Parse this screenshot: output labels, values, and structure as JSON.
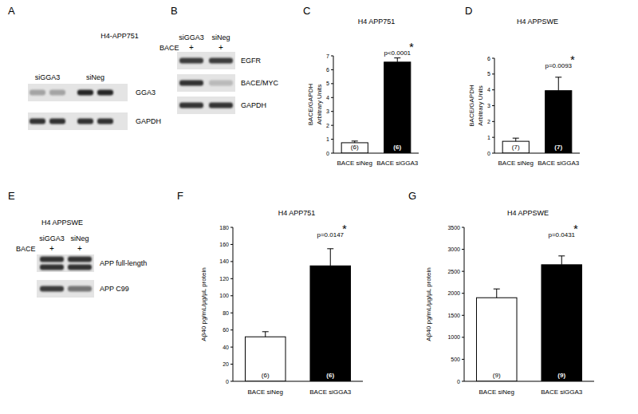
{
  "chart_data": [
    {
      "type": "bar",
      "panel": "C",
      "title": "H4 APP751",
      "y_label": [
        "BACE/GAPDH",
        "Arbitrary Units"
      ],
      "categories": [
        "BACE siNeg",
        "BACE siGGA3"
      ],
      "values": [
        0.75,
        6.55
      ],
      "errors": [
        0.12,
        0.3
      ],
      "n_labels": [
        "(6)",
        "(6)"
      ],
      "colors": [
        "#ffffff",
        "#000000"
      ],
      "ylim": [
        0,
        7
      ],
      "yticks": [
        0,
        1,
        2,
        3,
        4,
        5,
        6,
        7
      ],
      "annotation": "p<0.0001",
      "significance": "*"
    },
    {
      "type": "bar",
      "panel": "D",
      "title": "H4 APPSWE",
      "y_label": [
        "BACE/GAPDH",
        "Arbitrary Units"
      ],
      "categories": [
        "BACE siNeg",
        "BACE siGGA3"
      ],
      "values": [
        0.75,
        3.95
      ],
      "errors": [
        0.2,
        0.85
      ],
      "n_labels": [
        "(7)",
        "(7)"
      ],
      "colors": [
        "#ffffff",
        "#000000"
      ],
      "ylim": [
        0,
        6
      ],
      "yticks": [
        0,
        1,
        2,
        3,
        4,
        5,
        6
      ],
      "annotation": "p=0.0093",
      "significance": "*"
    },
    {
      "type": "bar",
      "panel": "F",
      "title": "H4 APP751",
      "y_label": [
        "Aβ40 pg/mL/µg/µL protein"
      ],
      "categories": [
        "BACE siNeg",
        "BACE siGGA3"
      ],
      "values": [
        52,
        135
      ],
      "errors": [
        6,
        20
      ],
      "n_labels": [
        "(6)",
        "(6)"
      ],
      "colors": [
        "#ffffff",
        "#000000"
      ],
      "ylim": [
        0,
        180
      ],
      "yticks": [
        0,
        20,
        40,
        60,
        80,
        100,
        120,
        140,
        160,
        180
      ],
      "annotation": "p=0.0147",
      "significance": "*"
    },
    {
      "type": "bar",
      "panel": "G",
      "title": "H4 APPSWE",
      "y_label": [
        "Aβ40 pg/mL/µg/µL protein"
      ],
      "categories": [
        "BACE siNeg",
        "BACE siGGA3"
      ],
      "values": [
        1900,
        2650
      ],
      "errors": [
        200,
        200
      ],
      "n_labels": [
        "(9)",
        "(9)"
      ],
      "colors": [
        "#ffffff",
        "#000000"
      ],
      "ylim": [
        0,
        3500
      ],
      "yticks": [
        0,
        500,
        1000,
        1500,
        2000,
        2500,
        3000,
        3500
      ],
      "annotation": "p=0.0431",
      "significance": "*"
    }
  ],
  "blots": [
    {
      "panel": "A",
      "title": "H4-APP751",
      "lanes": [
        "siGGA3",
        "siNeg"
      ],
      "rows": [
        {
          "label": "GGA3"
        },
        {
          "label": "GAPDH"
        }
      ]
    },
    {
      "panel": "B",
      "lanes": [
        "siGGA3",
        "siNeg"
      ],
      "treatment": {
        "label": "BACE",
        "marks": [
          "+",
          "+"
        ]
      },
      "rows": [
        {
          "label": "EGFR"
        },
        {
          "label": "BACE/MYC"
        },
        {
          "label": "GAPDH"
        }
      ]
    },
    {
      "panel": "E",
      "title": "H4 APPSWE",
      "lanes": [
        "siGGA3",
        "siNeg"
      ],
      "treatment": {
        "label": "BACE",
        "marks": [
          "+",
          "+"
        ]
      },
      "rows": [
        {
          "label": "APP full-length"
        },
        {
          "label": "APP C99"
        }
      ]
    }
  ]
}
